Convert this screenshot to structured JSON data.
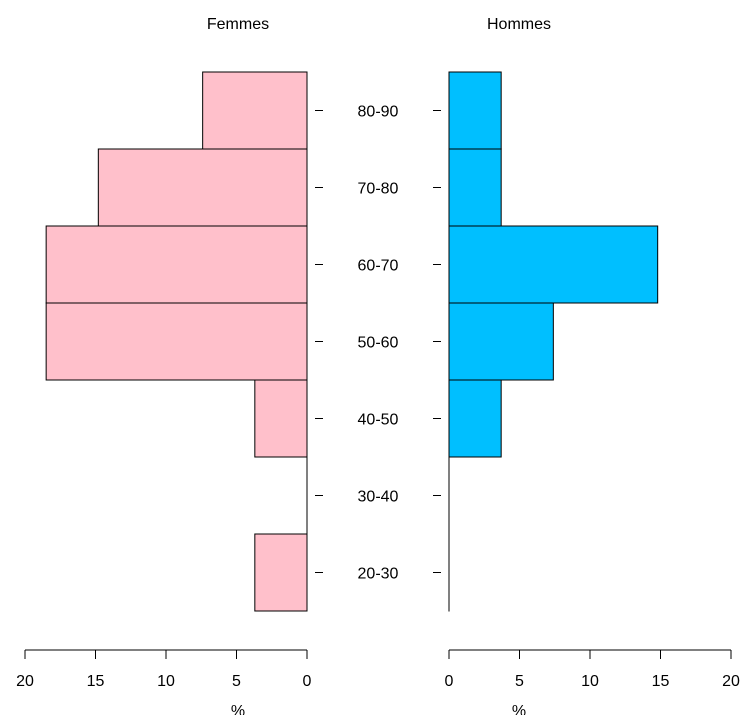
{
  "chart_data": {
    "type": "bar",
    "categories": [
      "20-30",
      "30-40",
      "40-50",
      "50-60",
      "60-70",
      "70-80",
      "80-90"
    ],
    "series": [
      {
        "name": "Femmes",
        "values": [
          3.7,
          0,
          3.7,
          18.5,
          18.5,
          14.8,
          7.4
        ],
        "color": "#FFC0CB"
      },
      {
        "name": "Hommes",
        "values": [
          0,
          0,
          3.7,
          7.4,
          14.8,
          3.7,
          3.7
        ],
        "color": "#00BFFF"
      }
    ],
    "xlabel": "%",
    "xlim": [
      0,
      20
    ],
    "xticks": [
      0,
      5,
      10,
      15,
      20
    ],
    "orientation": "horizontal-population-pyramid",
    "grid": false,
    "legend": "none"
  }
}
